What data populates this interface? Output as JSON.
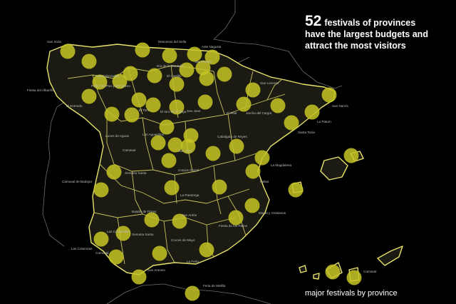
{
  "headline": {
    "count": "52",
    "line1": "festivals of provinces",
    "line2": "have the largest budgets and",
    "line3": "attract the most visitors"
  },
  "legend": "major festivals by province",
  "colors": {
    "background": "#000000",
    "border": "#e8e26a",
    "dot": "#c6c424"
  },
  "festival_labels": [
    "San Xoán",
    "Descenso del Sella",
    "Aste Nagusia",
    "Día de la Montaña",
    "San Fermín",
    "Las Cabezadas",
    "Pedro del Pan y del Queso",
    "El Castillo",
    "Fiesta del Albariño",
    "El Entroido",
    "San Lorenzo",
    "San Narcís",
    "El Pilar",
    "Jarcha del Cargol",
    "San Juan",
    "El toro de la Vega",
    "El Toro",
    "La Patum",
    "Lunes de Aguas",
    "Los Aguaviños",
    "Santa Tecla",
    "Carnaval",
    "Cabalgata de Reyes",
    "San Juan",
    "Carnaval de Badajoz",
    "Semana Santa",
    "Corpus Christi",
    "La Magdalena",
    "Fallas",
    "La Pandorga",
    "Moros y Cristianos",
    "Batalla de Flores",
    "San Antón",
    "Semana Santa",
    "Carnaval",
    "Las Columnas",
    "Cruces de Mayo",
    "Fiesta de los Patios",
    "Las Carnavales",
    "San Antonio",
    "La Feria",
    "Feria de Melilla",
    "Carnaval"
  ]
}
